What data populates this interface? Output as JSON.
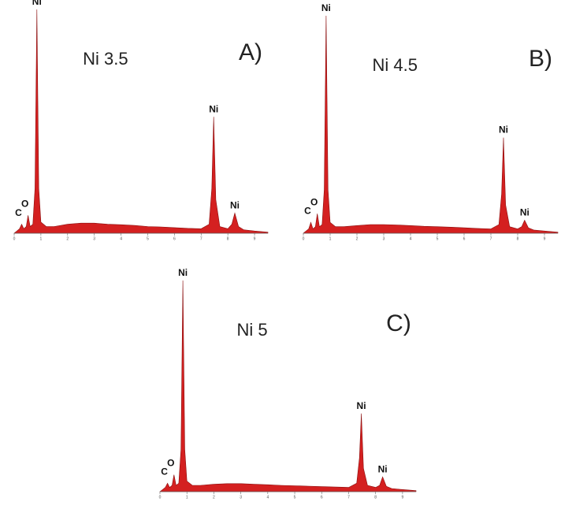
{
  "chart_data": [
    {
      "type": "area",
      "title": "Ni 3.5",
      "panel_label": "A)",
      "color": "#d42020",
      "x": [
        0,
        0.1,
        0.2,
        0.28,
        0.36,
        0.45,
        0.52,
        0.6,
        0.7,
        0.78,
        0.85,
        0.92,
        1.0,
        1.2,
        1.5,
        2,
        2.5,
        3,
        3.5,
        4,
        4.5,
        5,
        5.5,
        6,
        6.5,
        7.0,
        7.3,
        7.4,
        7.47,
        7.55,
        7.7,
        8.0,
        8.15,
        8.26,
        8.4,
        8.6,
        9,
        9.5
      ],
      "values": [
        0,
        1,
        2,
        4,
        2,
        3,
        8,
        3,
        4,
        20,
        100,
        20,
        5,
        3,
        3,
        4,
        4.5,
        4.5,
        4,
        3.8,
        3.5,
        3,
        2.8,
        2.5,
        2.2,
        2,
        4,
        20,
        52,
        15,
        3,
        2,
        4,
        9,
        3,
        1.5,
        1,
        0.5
      ],
      "xlim": [
        0,
        9.5
      ],
      "ylim": [
        0,
        100
      ],
      "xticks": [
        0,
        1,
        2,
        3,
        4,
        5,
        6,
        7,
        8,
        9
      ],
      "annotations": [
        {
          "text": "Ni",
          "x": 0.85
        },
        {
          "text": "Ni",
          "x": 7.47
        },
        {
          "text": "Ni",
          "x": 8.26
        },
        {
          "text": "O",
          "x": 0.52
        },
        {
          "text": "C",
          "x": 0.28
        }
      ]
    },
    {
      "type": "area",
      "title": "Ni 4.5",
      "panel_label": "B)",
      "color": "#d42020",
      "x": [
        0,
        0.1,
        0.2,
        0.28,
        0.36,
        0.45,
        0.52,
        0.6,
        0.7,
        0.78,
        0.85,
        0.92,
        1.0,
        1.2,
        1.5,
        2,
        2.5,
        3,
        3.5,
        4,
        4.5,
        5,
        5.5,
        6,
        6.5,
        7.0,
        7.3,
        7.4,
        7.47,
        7.55,
        7.7,
        8.0,
        8.15,
        8.26,
        8.4,
        8.6,
        9,
        9.5
      ],
      "values": [
        0,
        1,
        2,
        5,
        2,
        3,
        9,
        3,
        4,
        20,
        100,
        20,
        5,
        3,
        3,
        3.5,
        4,
        4,
        3.8,
        3.5,
        3.2,
        3,
        2.8,
        2.5,
        2.2,
        2,
        4,
        18,
        44,
        13,
        3,
        2,
        3,
        6,
        2.5,
        1.5,
        1,
        0.5
      ],
      "xlim": [
        0,
        9.5
      ],
      "ylim": [
        0,
        100
      ],
      "xticks": [
        0,
        1,
        2,
        3,
        4,
        5,
        6,
        7,
        8,
        9
      ],
      "annotations": [
        {
          "text": "Ni",
          "x": 0.85
        },
        {
          "text": "Ni",
          "x": 7.47
        },
        {
          "text": "Ni",
          "x": 8.26
        },
        {
          "text": "O",
          "x": 0.52
        },
        {
          "text": "C",
          "x": 0.28
        }
      ]
    },
    {
      "type": "area",
      "title": "Ni 5",
      "panel_label": "C)",
      "color": "#d42020",
      "x": [
        0,
        0.1,
        0.2,
        0.28,
        0.36,
        0.45,
        0.52,
        0.6,
        0.7,
        0.78,
        0.85,
        0.92,
        1.0,
        1.2,
        1.5,
        2,
        2.5,
        3,
        3.5,
        4,
        4.5,
        5,
        5.5,
        6,
        6.5,
        7.0,
        7.3,
        7.4,
        7.47,
        7.55,
        7.7,
        8.0,
        8.15,
        8.26,
        8.4,
        8.6,
        9,
        9.5
      ],
      "values": [
        0,
        1,
        2,
        4,
        2,
        3,
        8,
        3,
        4,
        20,
        100,
        20,
        5,
        3,
        3,
        3.5,
        3.8,
        3.8,
        3.5,
        3.3,
        3,
        2.8,
        2.6,
        2.4,
        2.2,
        2,
        4,
        16,
        37,
        11,
        3,
        2,
        3,
        7,
        2.5,
        1.5,
        1,
        0.5
      ],
      "xlim": [
        0,
        9.5
      ],
      "ylim": [
        0,
        100
      ],
      "xticks": [
        0,
        1,
        2,
        3,
        4,
        5,
        6,
        7,
        8,
        9
      ],
      "annotations": [
        {
          "text": "Ni",
          "x": 0.85
        },
        {
          "text": "Ni",
          "x": 7.47
        },
        {
          "text": "Ni",
          "x": 8.26
        },
        {
          "text": "O",
          "x": 0.52
        },
        {
          "text": "C",
          "x": 0.28
        }
      ]
    }
  ]
}
